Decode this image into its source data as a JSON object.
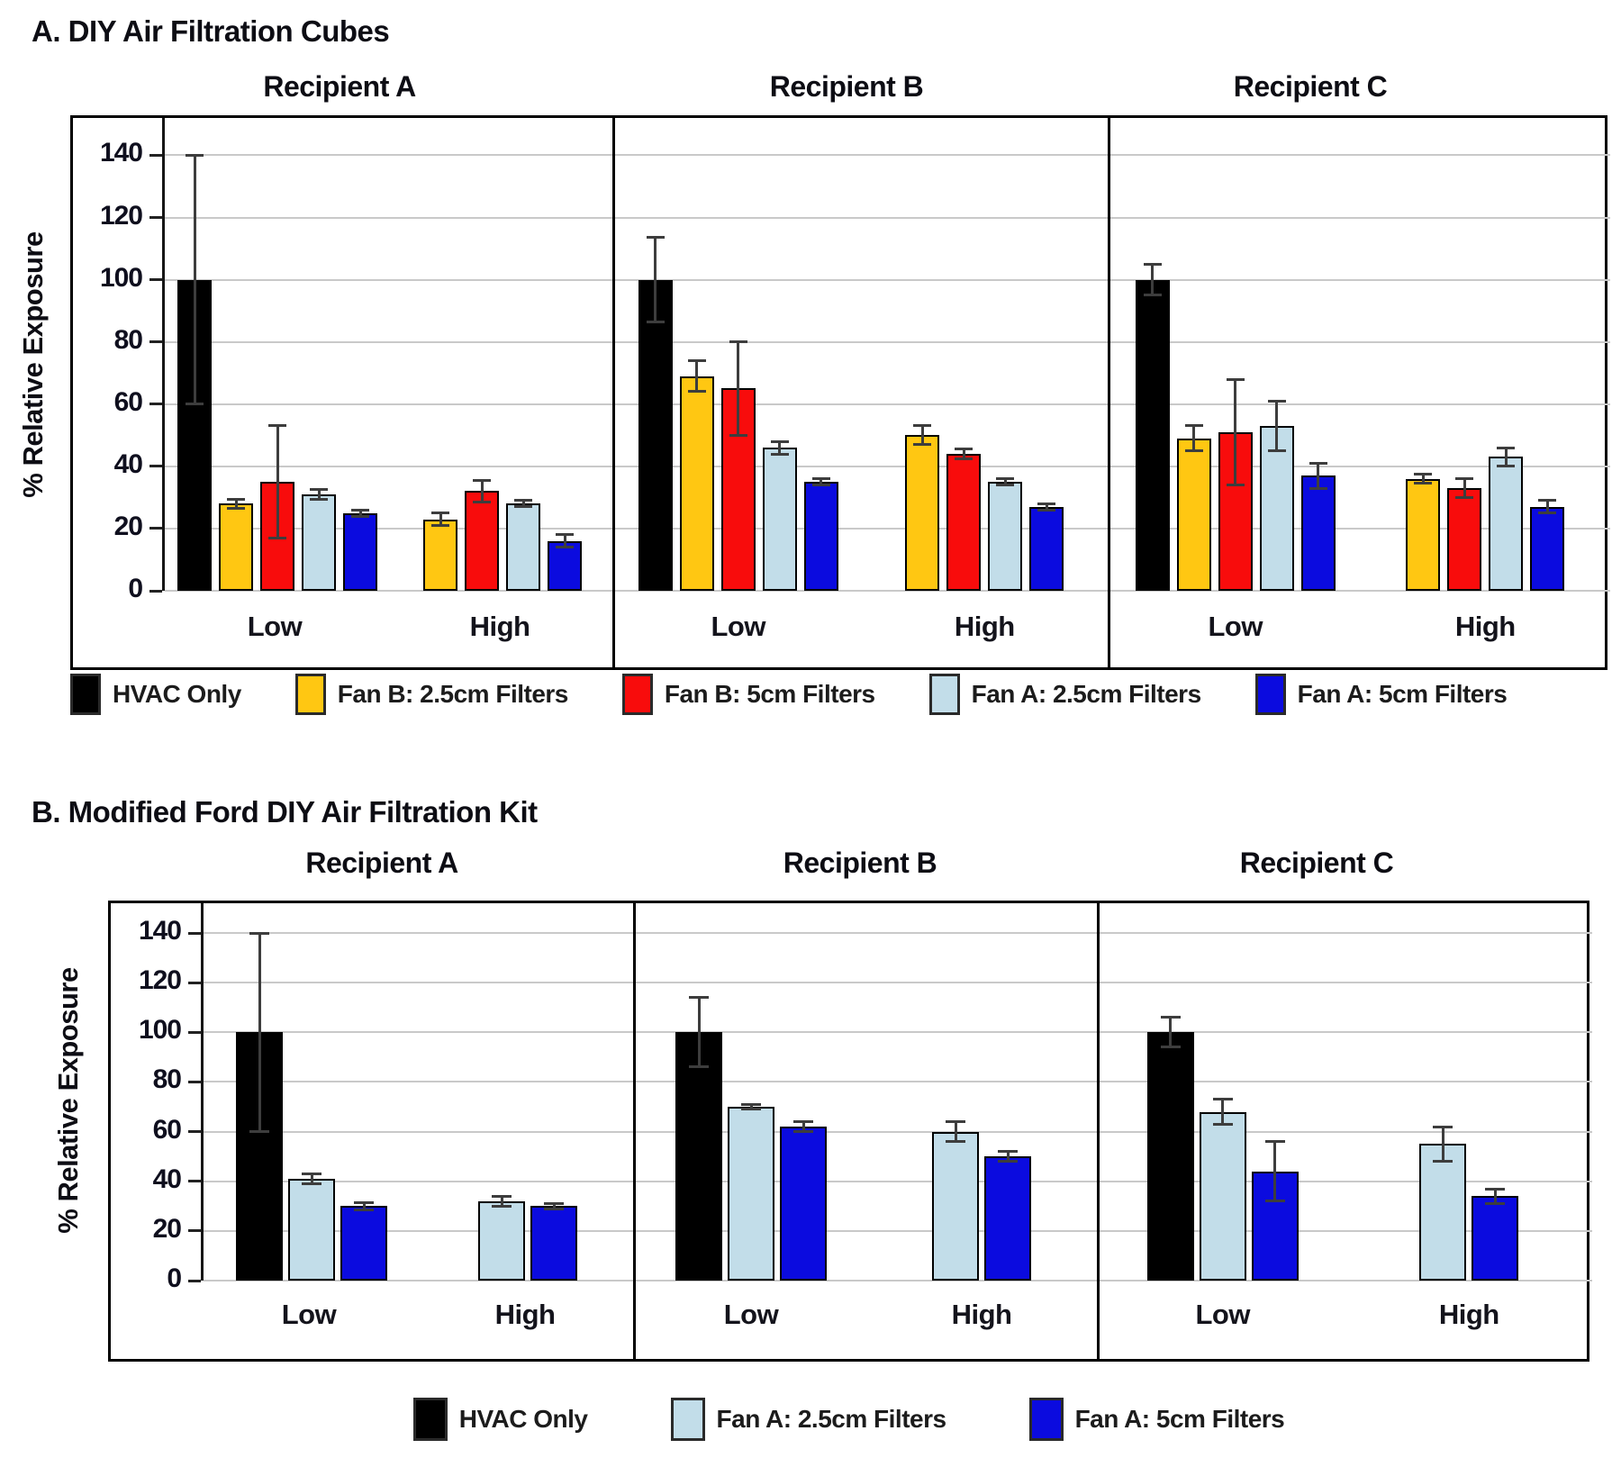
{
  "figure_caption": {
    "panel_a_label": "A.",
    "panel_b_label": "B."
  },
  "chart_data": [
    {
      "type": "bar",
      "panel": "A",
      "title": "A. DIY Air Filtration Cubes",
      "ylabel": "% Relative Exposure",
      "ylim": [
        0,
        152
      ],
      "yticks": [
        0,
        20,
        40,
        60,
        80,
        100,
        120,
        140
      ],
      "categories": [
        "Low",
        "High"
      ],
      "grid": true,
      "error_bars": true,
      "legend_position": "bottom",
      "series": [
        {
          "name": "HVAC Only",
          "color": "#000000"
        },
        {
          "name": "Fan B: 2.5cm Filters",
          "color": "#FFC712"
        },
        {
          "name": "Fan B: 5cm Filters",
          "color": "#F80C0C"
        },
        {
          "name": "Fan A: 2.5cm Filters",
          "color": "#C2DDE9"
        },
        {
          "name": "Fan A: 5cm Filters",
          "color": "#0B0BDF"
        }
      ],
      "subplots": [
        {
          "title": "Recipient A",
          "values": {
            "Low": [
              100,
              28,
              35,
              31,
              25
            ],
            "High": [
              null,
              23,
              32,
              28,
              16
            ]
          },
          "errors": {
            "Low": [
              40,
              1.5,
              18,
              1.5,
              1
            ],
            "High": [
              null,
              2,
              3.5,
              1,
              2
            ]
          }
        },
        {
          "title": "Recipient B",
          "values": {
            "Low": [
              100,
              69,
              65,
              46,
              35
            ],
            "High": [
              null,
              50,
              44,
              35,
              27
            ]
          },
          "errors": {
            "Low": [
              13.5,
              5,
              15,
              2,
              1
            ],
            "High": [
              null,
              3,
              1.5,
              1,
              1
            ]
          }
        },
        {
          "title": "Recipient C",
          "values": {
            "Low": [
              100,
              49,
              51,
              53,
              37
            ],
            "High": [
              null,
              36,
              33,
              43,
              27
            ]
          },
          "errors": {
            "Low": [
              5,
              4,
              17,
              8,
              4
            ],
            "High": [
              null,
              1.5,
              3,
              3,
              2
            ]
          }
        }
      ]
    },
    {
      "type": "bar",
      "panel": "B",
      "title": "B. Modified Ford DIY Air Filtration Kit",
      "ylabel": "% Relative Exposure",
      "ylim": [
        0,
        152
      ],
      "yticks": [
        0,
        20,
        40,
        60,
        80,
        100,
        120,
        140
      ],
      "categories": [
        "Low",
        "High"
      ],
      "grid": true,
      "error_bars": true,
      "legend_position": "bottom",
      "series": [
        {
          "name": "HVAC Only",
          "color": "#000000"
        },
        {
          "name": "Fan A: 2.5cm Filters",
          "color": "#C2DDE9"
        },
        {
          "name": "Fan A: 5cm Filters",
          "color": "#0B0BDF"
        }
      ],
      "subplots": [
        {
          "title": "Recipient A",
          "values": {
            "Low": [
              100,
              41,
              30
            ],
            "High": [
              null,
              32,
              30
            ]
          },
          "errors": {
            "Low": [
              40,
              2,
              1.5
            ],
            "High": [
              null,
              2,
              1
            ]
          }
        },
        {
          "title": "Recipient B",
          "values": {
            "Low": [
              100,
              70,
              62
            ],
            "High": [
              null,
              60,
              50
            ]
          },
          "errors": {
            "Low": [
              14,
              1,
              2
            ],
            "High": [
              null,
              4,
              2
            ]
          }
        },
        {
          "title": "Recipient C",
          "values": {
            "Low": [
              100,
              68,
              44
            ],
            "High": [
              null,
              55,
              34
            ]
          },
          "errors": {
            "Low": [
              6,
              5,
              12
            ],
            "High": [
              null,
              7,
              3
            ]
          }
        }
      ]
    }
  ]
}
